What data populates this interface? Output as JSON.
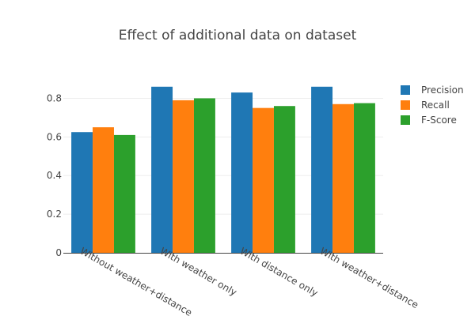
{
  "chart_data": {
    "type": "bar",
    "title": "Effect of additional data on dataset",
    "xlabel": "",
    "ylabel": "",
    "categories": [
      "Without weather+distance",
      "With weather only",
      "With distance only",
      "With weather+distance"
    ],
    "series": [
      {
        "name": "Precision",
        "color": "#1f77b4",
        "values": [
          0.625,
          0.86,
          0.83,
          0.86
        ]
      },
      {
        "name": "Recall",
        "color": "#ff7f0e",
        "values": [
          0.65,
          0.79,
          0.75,
          0.77
        ]
      },
      {
        "name": "F-Score",
        "color": "#2ca02c",
        "values": [
          0.61,
          0.8,
          0.76,
          0.775
        ]
      }
    ],
    "ylim": [
      0,
      0.9
    ],
    "yticks": [
      0,
      0.2,
      0.4,
      0.6,
      0.8
    ],
    "ytick_labels": [
      "0",
      "0.2",
      "0.4",
      "0.6",
      "0.8"
    ],
    "grid": true,
    "legend_position": "top-right"
  }
}
